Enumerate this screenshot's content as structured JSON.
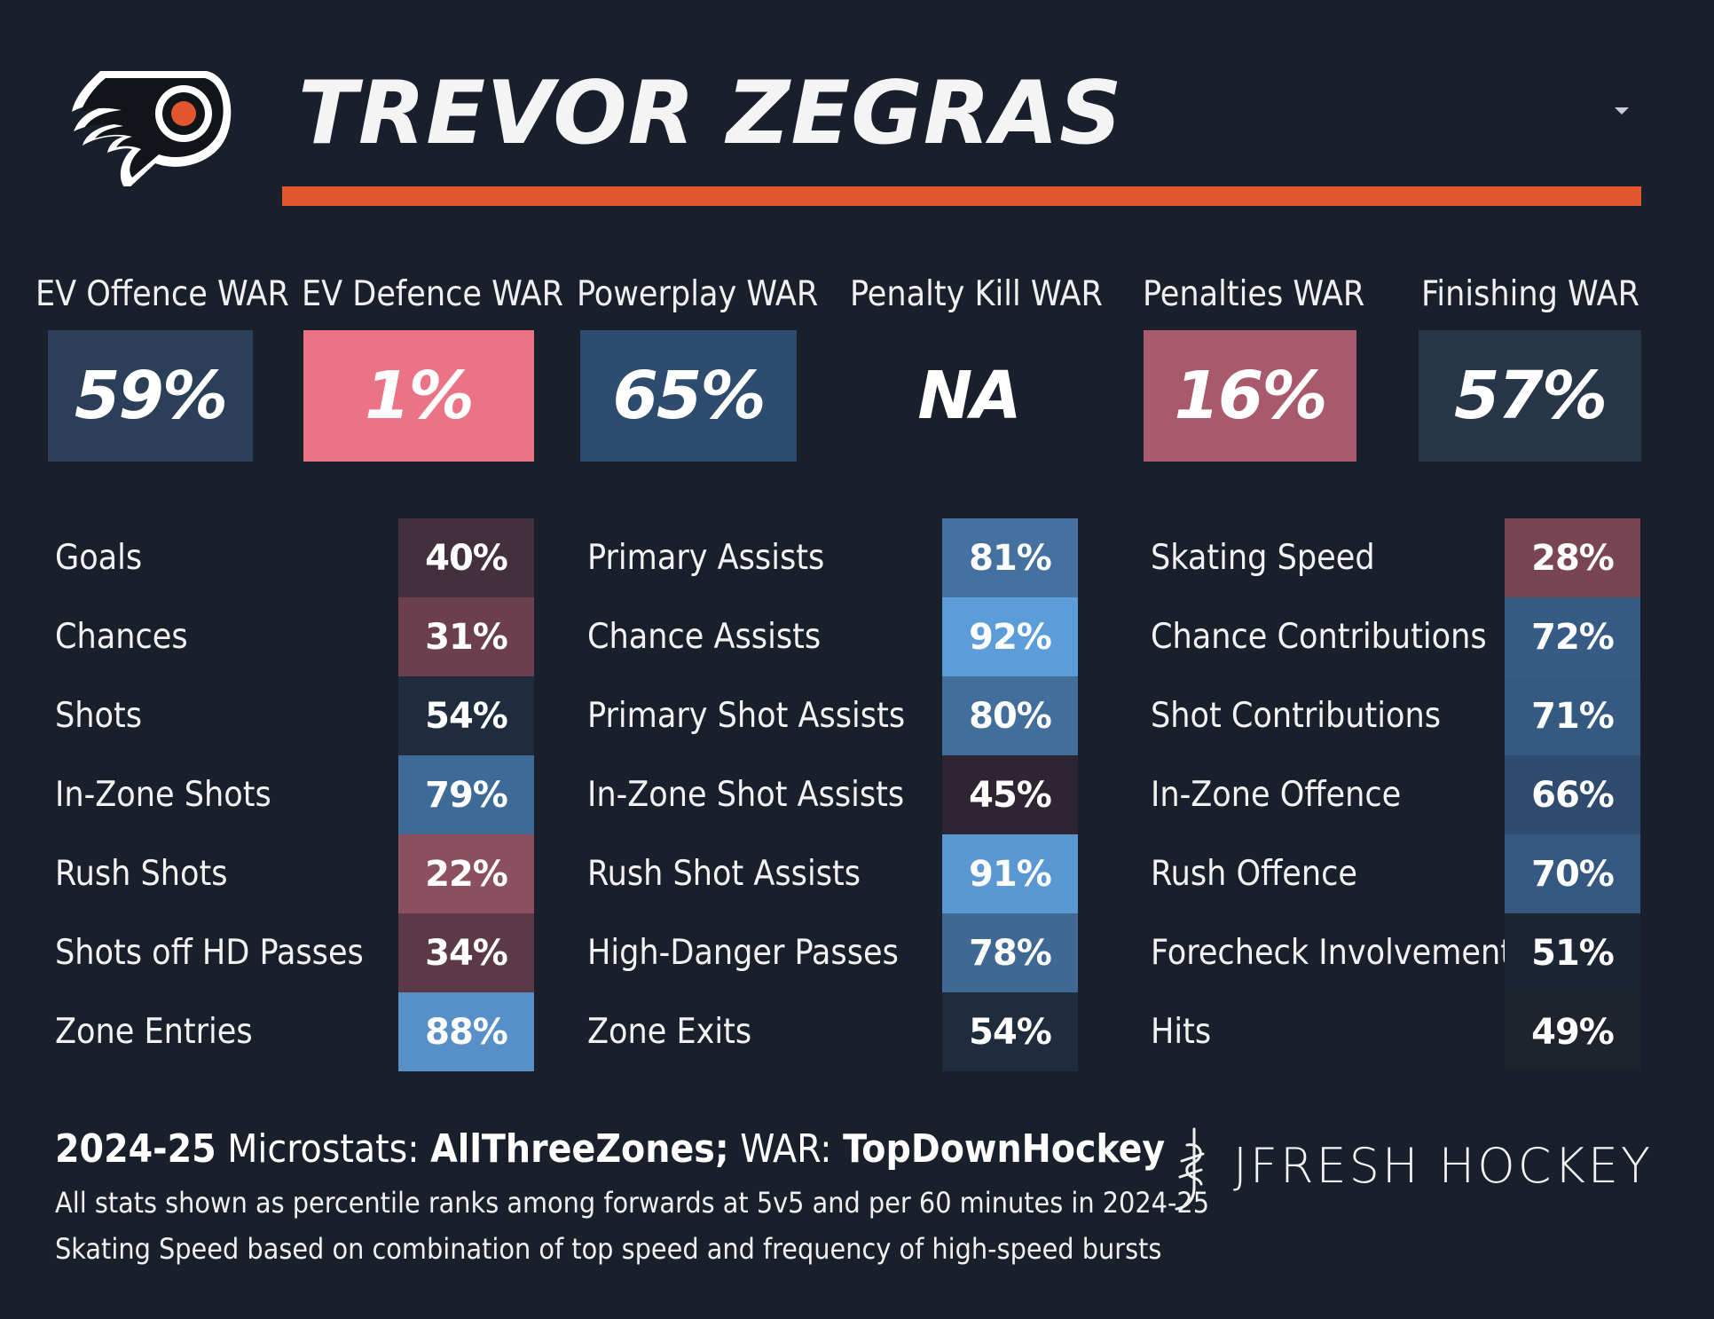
{
  "player_name": "TREVOR ZEGRAS",
  "icons": {
    "logo": "flyers-logo",
    "dropdown": "chevron-down-icon",
    "brand": "jfresh-hockey-logo-icon"
  },
  "colors": {
    "background": "#19202b",
    "accent": "#e2562e"
  },
  "war": [
    {
      "label": "EV Offence WAR",
      "value": "59%",
      "color": "#2c3f58"
    },
    {
      "label": "EV Defence WAR",
      "value": "1%",
      "color": "#ec7386"
    },
    {
      "label": "Powerplay WAR",
      "value": "65%",
      "color": "#2e4c6e"
    },
    {
      "label": "Penalty Kill WAR",
      "value": "NA",
      "color": "#19202b"
    },
    {
      "label": "Penalties WAR",
      "value": "16%",
      "color": "#a85a6c"
    },
    {
      "label": "Finishing WAR",
      "value": "57%",
      "color": "#283649"
    }
  ],
  "stats": [
    [
      {
        "label": "Goals",
        "value": "40%",
        "color": "#442f3c"
      },
      {
        "label": "Chances",
        "value": "31%",
        "color": "#6b3f4d"
      },
      {
        "label": "Shots",
        "value": "54%",
        "color": "#1e2c3d"
      },
      {
        "label": "In-Zone Shots",
        "value": "79%",
        "color": "#3e6a98"
      },
      {
        "label": "Rush Shots",
        "value": "22%",
        "color": "#8c4f5f"
      },
      {
        "label": "Shots off HD Passes",
        "value": "34%",
        "color": "#5b3947"
      },
      {
        "label": "Zone Entries",
        "value": "88%",
        "color": "#5790c6"
      }
    ],
    [
      {
        "label": "Primary Assists",
        "value": "81%",
        "color": "#44719f"
      },
      {
        "label": "Chance Assists",
        "value": "92%",
        "color": "#5b9dd9"
      },
      {
        "label": "Primary Shot Assists",
        "value": "80%",
        "color": "#426e9c"
      },
      {
        "label": "In-Zone Shot Assists",
        "value": "45%",
        "color": "#2d2632"
      },
      {
        "label": "Rush Shot Assists",
        "value": "91%",
        "color": "#5998d2"
      },
      {
        "label": "High-Danger Passes",
        "value": "78%",
        "color": "#3f6893"
      },
      {
        "label": "Zone Exits",
        "value": "54%",
        "color": "#1e2c3d"
      }
    ],
    [
      {
        "label": "Skating Speed",
        "value": "28%",
        "color": "#7a4553"
      },
      {
        "label": "Chance Contributions",
        "value": "72%",
        "color": "#365c85"
      },
      {
        "label": "Shot Contributions",
        "value": "71%",
        "color": "#355a82"
      },
      {
        "label": "In-Zone Offence",
        "value": "66%",
        "color": "#2f4c6e"
      },
      {
        "label": "Rush Offence",
        "value": "70%",
        "color": "#345880"
      },
      {
        "label": "Forecheck Involvement",
        "value": "51%",
        "color": "#1c2533"
      },
      {
        "label": "Hits",
        "value": "49%",
        "color": "#1e232d"
      }
    ]
  ],
  "footer": {
    "season": "2024-25",
    "microstats_prefix": " Microstats: ",
    "microstats_source": "AllThreeZones;",
    "war_prefix": " WAR: ",
    "war_source": "TopDownHockey",
    "note1": "All stats shown as percentile ranks among forwards at 5v5 and per 60 minutes in 2024-25",
    "note2": "Skating Speed based on combination of top speed and frequency of high-speed bursts"
  },
  "brand": "JFRESH HOCKEY"
}
